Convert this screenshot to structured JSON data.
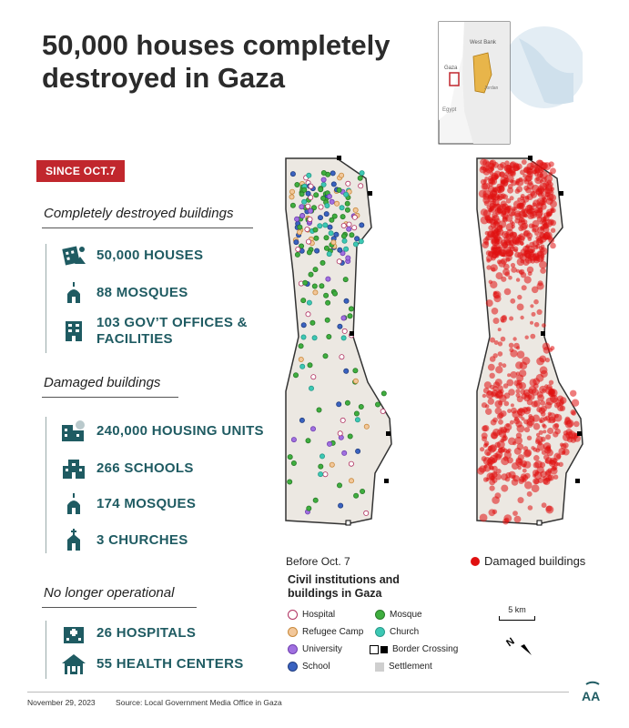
{
  "title": "50,000 houses completely destroyed in Gaza",
  "badge": "SINCE OCT.7",
  "inset_map": {
    "labels": {
      "west_bank": "West Bank",
      "gaza": "Gaza",
      "egypt": "Egypt",
      "jordan": "Jordan"
    }
  },
  "sections": [
    {
      "heading": "Completely destroyed buildings",
      "items": [
        {
          "icon": "destroyed-houses-icon",
          "label": "50,000 HOUSES"
        },
        {
          "icon": "mosque-icon",
          "label": "88 MOSQUES"
        },
        {
          "icon": "government-building-icon",
          "label": "103 GOV’T OFFICES & FACILITIES"
        }
      ]
    },
    {
      "heading": "Damaged buildings",
      "items": [
        {
          "icon": "damaged-housing-icon",
          "label": "240,000 HOUSING UNITS"
        },
        {
          "icon": "school-icon",
          "label": "266 SCHOOLS"
        },
        {
          "icon": "mosque-icon",
          "label": "174 MOSQUES"
        },
        {
          "icon": "church-icon",
          "label": "3 CHURCHES"
        }
      ]
    },
    {
      "heading": "No longer operational",
      "items": [
        {
          "icon": "hospital-icon",
          "label": "26 HOSPITALS"
        },
        {
          "icon": "health-center-icon",
          "label": "55 HEALTH CENTERS"
        }
      ]
    }
  ],
  "maps": {
    "before_label": "Before Oct. 7",
    "damaged_label": "Damaged buildings"
  },
  "legend": {
    "title": "Civil institutions and buildings in Gaza",
    "entries": [
      {
        "label": "Hospital",
        "color": "#ffffff",
        "border": "#b03060"
      },
      {
        "label": "Mosque",
        "color": "#3fae3f",
        "border": "#2a7a2a"
      },
      {
        "label": "Refugee Camp",
        "color": "#f2c79a",
        "border": "#c98a3c"
      },
      {
        "label": "Church",
        "color": "#3cc8b4",
        "border": "#2a9a8a"
      },
      {
        "label": "University",
        "color": "#a070e0",
        "border": "#7040b0"
      },
      {
        "label": "Border Crossing",
        "color": "#000000",
        "border": "#000000"
      },
      {
        "label": "School",
        "color": "#3a62c0",
        "border": "#233f80"
      },
      {
        "label": "Settlement",
        "color": "#cfcfcf",
        "border": "#cfcfcf"
      }
    ],
    "scale": "5 km",
    "north": "N"
  },
  "colors": {
    "accent": "#c1272d",
    "teal": "#1f5b62",
    "damage": "#e01010"
  },
  "footer": {
    "date": "November 29, 2023",
    "source": "Source: Local Government Media Office in Gaza",
    "logo": "AA"
  }
}
